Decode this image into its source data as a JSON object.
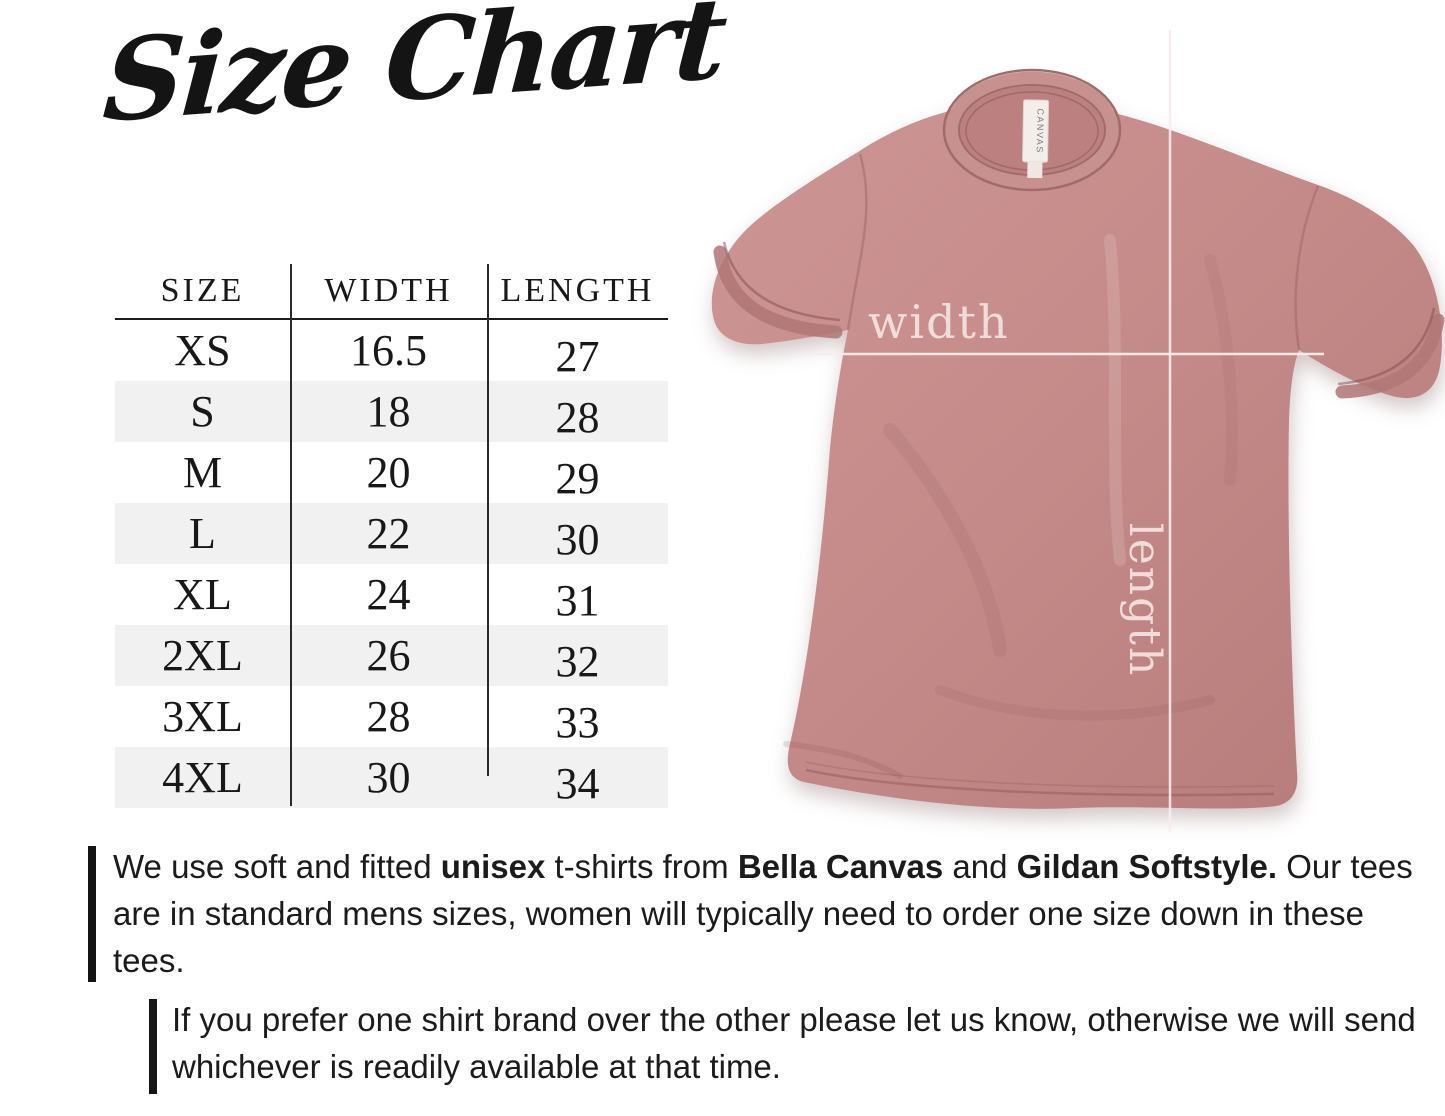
{
  "title": "Size Chart",
  "size_table": {
    "columns": [
      "SIZE",
      "WIDTH",
      "LENGTH"
    ],
    "rows": [
      [
        "XS",
        "16.5",
        "27"
      ],
      [
        "S",
        "18",
        "28"
      ],
      [
        "M",
        "20",
        "29"
      ],
      [
        "L",
        "22",
        "30"
      ],
      [
        "XL",
        "24",
        "31"
      ],
      [
        "2XL",
        "26",
        "32"
      ],
      [
        "3XL",
        "28",
        "33"
      ],
      [
        "4XL",
        "30",
        "34"
      ]
    ],
    "stripe_color": "#f1f1f1",
    "line_color": "#1c1c1c"
  },
  "chart_data": {
    "type": "table",
    "title": "Size Chart",
    "columns": [
      "SIZE",
      "WIDTH",
      "LENGTH"
    ],
    "rows": [
      [
        "XS",
        16.5,
        27
      ],
      [
        "S",
        18,
        28
      ],
      [
        "M",
        20,
        29
      ],
      [
        "L",
        22,
        30
      ],
      [
        "XL",
        24,
        31
      ],
      [
        "2XL",
        26,
        32
      ],
      [
        "3XL",
        28,
        33
      ],
      [
        "4XL",
        30,
        34
      ]
    ]
  },
  "shirt": {
    "width_label": "width",
    "length_label": "length",
    "neck_tag": "CANVAS",
    "fabric_color": "#c48a89",
    "measure_line_color": "#f7edec"
  },
  "notes": [
    {
      "segments": [
        {
          "text": "We use soft and fitted ",
          "bold": false
        },
        {
          "text": "unisex",
          "bold": true
        },
        {
          "text": " t-shirts from ",
          "bold": false
        },
        {
          "text": "Bella Canvas",
          "bold": true
        },
        {
          "text": " and ",
          "bold": false
        },
        {
          "text": "Gildan Softstyle.",
          "bold": true
        },
        {
          "text": " Our tees are in standard mens sizes, women will typically need to order one size down in these tees.",
          "bold": false
        }
      ]
    },
    {
      "segments": [
        {
          "text": "If you prefer one shirt brand over the other please let us know, otherwise we will send whichever is readily available at that time.",
          "bold": false
        }
      ]
    }
  ]
}
